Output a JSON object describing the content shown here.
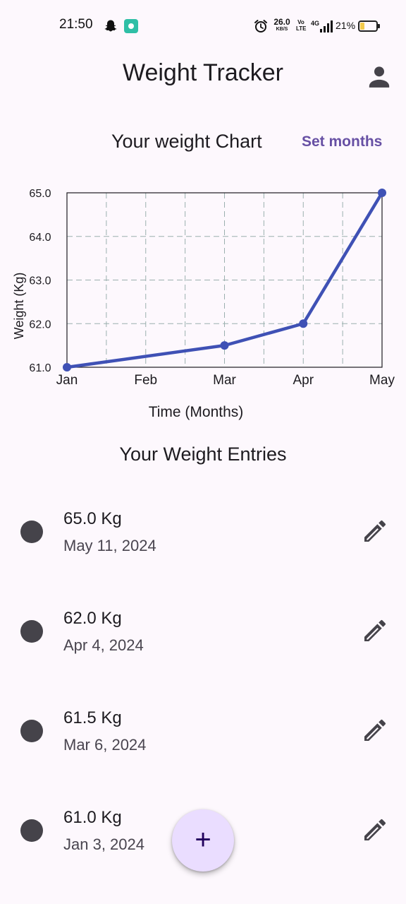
{
  "status_bar": {
    "time": "21:50",
    "net_speed_value": "26.0",
    "net_speed_unit": "KB/S",
    "volte_line1": "Vo",
    "volte_line2": "LTE",
    "network": "4G",
    "battery": "21%",
    "icons": [
      "snapchat-icon",
      "app-notification-icon",
      "alarm-icon",
      "signal-icon",
      "battery-icon"
    ]
  },
  "app_bar": {
    "title": "Weight Tracker",
    "profile_icon": "person-icon"
  },
  "chart_header": {
    "title": "Your weight Chart",
    "set_months_label": "Set months"
  },
  "chart_data": {
    "type": "line",
    "x": [
      "Jan",
      "Feb",
      "Mar",
      "Apr",
      "May"
    ],
    "points": [
      {
        "x": 0,
        "y": 61.0
      },
      {
        "x": 2,
        "y": 61.5
      },
      {
        "x": 3,
        "y": 62.0
      },
      {
        "x": 4,
        "y": 65.0
      }
    ],
    "ylim": [
      61.0,
      65.0
    ],
    "yticks": [
      "61.0",
      "62.0",
      "63.0",
      "64.0",
      "65.0"
    ],
    "xlabel": "Time (Months)",
    "ylabel": "Weight (Kg)",
    "grid": true,
    "line_color": "#3f51b5"
  },
  "entries": {
    "title": "Your Weight Entries",
    "items": [
      {
        "weight": "65.0 Kg",
        "date": "May 11, 2024"
      },
      {
        "weight": "62.0 Kg",
        "date": "Apr 4, 2024"
      },
      {
        "weight": "61.5 Kg",
        "date": "Mar 6, 2024"
      },
      {
        "weight": "61.0 Kg",
        "date": "Jan 3, 2024"
      }
    ],
    "edit_icon": "edit-pencil-icon"
  },
  "fab": {
    "label": "+",
    "icon": "add-icon",
    "color": "#eaddff"
  },
  "colors": {
    "accent": "#6750a4",
    "background": "#fdf8fd"
  }
}
